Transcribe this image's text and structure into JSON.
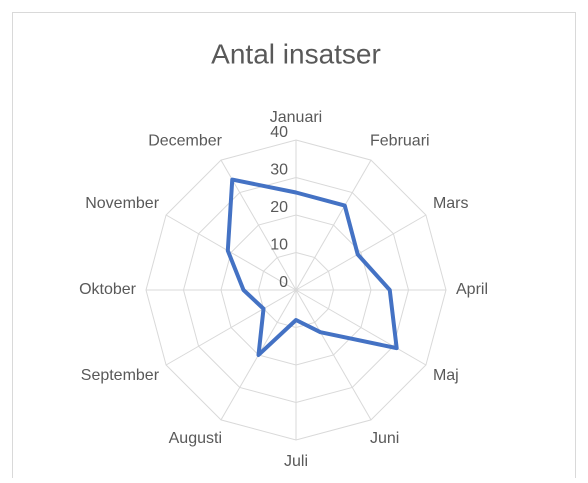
{
  "chart_data": {
    "type": "radar",
    "title": "Antal insatser",
    "categories": [
      "Januari",
      "Februari",
      "Mars",
      "April",
      "Maj",
      "Juni",
      "Juli",
      "Augusti",
      "September",
      "Oktober",
      "November",
      "December"
    ],
    "values": [
      26,
      26,
      19,
      25,
      31,
      13,
      8,
      20,
      10,
      14,
      21,
      34
    ],
    "color": "#4472c4",
    "ylim": [
      0,
      40
    ],
    "yticks": [
      0,
      10,
      20,
      30,
      40
    ],
    "grid": true
  }
}
